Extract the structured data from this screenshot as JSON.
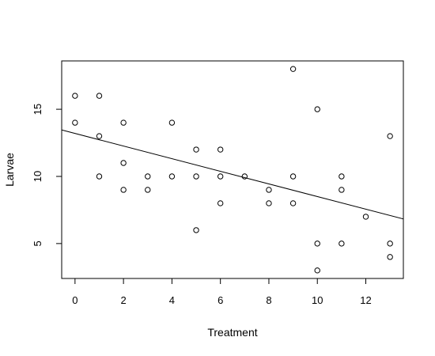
{
  "chart_data": {
    "type": "scatter",
    "title": "",
    "xlabel": "Treatment",
    "ylabel": "Larvae",
    "xlim": [
      -0.55,
      13.55
    ],
    "ylim": [
      2.4,
      18.6
    ],
    "xticks": [
      0,
      2,
      4,
      6,
      8,
      10,
      12
    ],
    "yticks": [
      5,
      10,
      15
    ],
    "grid": false,
    "legend": "none",
    "series": [
      {
        "x": [
          0,
          0,
          1,
          1,
          1,
          2,
          2,
          2,
          3,
          3,
          4,
          4,
          5,
          5,
          5,
          6,
          6,
          6,
          7,
          8,
          8,
          9,
          9,
          9,
          10,
          10,
          10,
          11,
          11,
          11,
          12,
          13,
          13,
          13
        ],
        "y": [
          16,
          14,
          16,
          13,
          10,
          14,
          11,
          9,
          10,
          9,
          14,
          10,
          12,
          10,
          6,
          12,
          10,
          8,
          10,
          9,
          8,
          18,
          10,
          8,
          15,
          5,
          3,
          10,
          9,
          5,
          7,
          13,
          5,
          4
        ]
      }
    ],
    "regression_line": {
      "intercept": 13.2,
      "slope": -0.47
    }
  }
}
